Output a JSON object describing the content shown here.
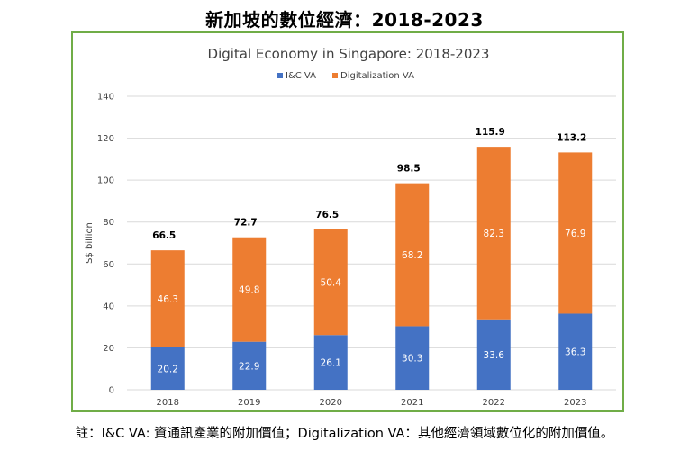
{
  "page_title": "新加坡的數位經濟：2018-2023",
  "footnote": "註：I&C VA: 資通訊產業的附加價值；Digitalization VA：其他經濟領域數位化的附加價值。",
  "chart_data": {
    "type": "bar",
    "stacked": true,
    "title": "Digital Economy in Singapore: 2018-2023",
    "xlabel": "",
    "ylabel": "S$ billion",
    "ylim": [
      0,
      140
    ],
    "yticks": [
      0,
      20,
      40,
      60,
      80,
      100,
      120,
      140
    ],
    "grid": true,
    "legend_position": "top",
    "categories": [
      "2018",
      "2019",
      "2020",
      "2021",
      "2022",
      "2023"
    ],
    "series": [
      {
        "name": "I&C VA",
        "color": "#4472c4",
        "values": [
          20.2,
          22.9,
          26.1,
          30.3,
          33.6,
          36.3
        ]
      },
      {
        "name": "Digitalization VA",
        "color": "#ed7d31",
        "values": [
          46.3,
          49.8,
          50.4,
          68.2,
          82.3,
          76.9
        ]
      }
    ],
    "totals": [
      66.5,
      72.7,
      76.5,
      98.5,
      115.9,
      113.2
    ]
  }
}
